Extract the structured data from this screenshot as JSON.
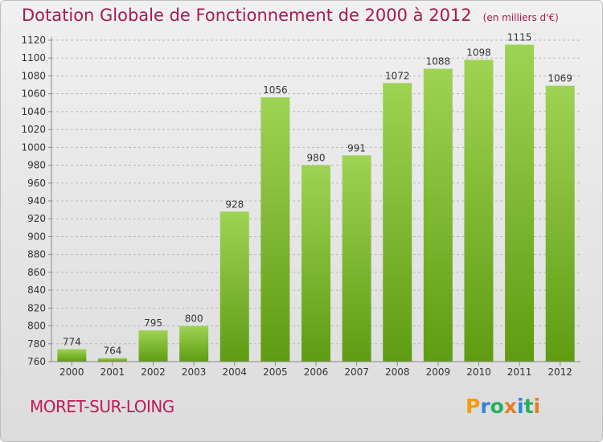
{
  "header": {
    "title": "Dotation Globale de Fonctionnement de 2000 à 2012",
    "subtitle": "(en milliers d'€)"
  },
  "commune": "MORET-SUR-LOING",
  "brand": {
    "letters": [
      "P",
      "r",
      "o",
      "x",
      "i",
      "t",
      "i"
    ],
    "colors": [
      "#f39c12",
      "#2e86de",
      "#27ae60",
      "#e67e22",
      "#2e86de",
      "#27ae60",
      "#e67e22"
    ]
  },
  "chart_data": {
    "type": "bar",
    "title": "Dotation Globale de Fonctionnement de 2000 à 2012",
    "subtitle": "(en milliers d'€)",
    "categories": [
      "2000",
      "2001",
      "2002",
      "2003",
      "2004",
      "2005",
      "2006",
      "2007",
      "2008",
      "2009",
      "2010",
      "2011",
      "2012"
    ],
    "values": [
      774,
      764,
      795,
      800,
      928,
      1056,
      980,
      991,
      1072,
      1088,
      1098,
      1115,
      1069
    ],
    "ylim": [
      760,
      1120
    ],
    "ytick_step": 20,
    "grid": true,
    "bar_color_top": "#9fd353",
    "bar_color_bottom": "#5f9c12"
  }
}
